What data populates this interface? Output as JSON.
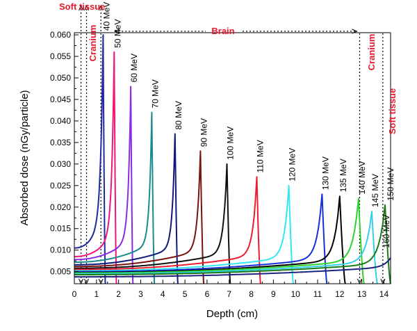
{
  "chart_data": {
    "type": "line",
    "xlabel": "Depth (cm)",
    "ylabel": "Absorbed dose (nGy/particle)",
    "xlim": [
      0,
      14.3
    ],
    "ylim": [
      0.0022,
      0.0605
    ],
    "xticks": [
      "0",
      "1",
      "2",
      "3",
      "4",
      "5",
      "6",
      "7",
      "8",
      "9",
      "10",
      "11",
      "12",
      "13",
      "14"
    ],
    "yticks": [
      "0.005",
      "0.010",
      "0.015",
      "0.020",
      "0.025",
      "0.030",
      "0.035",
      "0.040",
      "0.045",
      "0.050",
      "0.055",
      "0.060"
    ],
    "series": [
      {
        "name": "40 MeV",
        "color": "#1f2aa0",
        "peak_depth": 1.3,
        "peak_dose": 0.06,
        "start_dose": 0.0105,
        "range": 1.4
      },
      {
        "name": "50 MeV",
        "color": "#f0147c",
        "peak_depth": 1.8,
        "peak_dose": 0.056,
        "start_dose": 0.0085,
        "range": 1.9
      },
      {
        "name": "60 MeV",
        "color": "#8a2be2",
        "peak_depth": 2.55,
        "peak_dose": 0.048,
        "start_dose": 0.0078,
        "range": 2.65
      },
      {
        "name": "70 MeV",
        "color": "#1a8a8a",
        "peak_depth": 3.5,
        "peak_dose": 0.042,
        "start_dose": 0.0072,
        "range": 3.62
      },
      {
        "name": "80 MeV",
        "color": "#0d1a78",
        "peak_depth": 4.55,
        "peak_dose": 0.037,
        "start_dose": 0.0066,
        "range": 4.68
      },
      {
        "name": "90 MeV",
        "color": "#7a1010",
        "peak_depth": 5.7,
        "peak_dose": 0.033,
        "start_dose": 0.0062,
        "range": 5.85
      },
      {
        "name": "100 MeV",
        "color": "#111111",
        "peak_depth": 6.9,
        "peak_dose": 0.03,
        "start_dose": 0.0058,
        "range": 7.05
      },
      {
        "name": "110 MeV",
        "color": "#ee1c2e",
        "peak_depth": 8.25,
        "peak_dose": 0.027,
        "start_dose": 0.0055,
        "range": 8.42
      },
      {
        "name": "120 MeV",
        "color": "#33e6f0",
        "peak_depth": 9.7,
        "peak_dose": 0.025,
        "start_dose": 0.0052,
        "range": 9.9
      },
      {
        "name": "130 MeV",
        "color": "#1530d8",
        "peak_depth": 11.2,
        "peak_dose": 0.023,
        "start_dose": 0.005,
        "range": 11.42
      },
      {
        "name": "135 MeV",
        "color": "#000000",
        "peak_depth": 12.0,
        "peak_dose": 0.0225,
        "start_dose": 0.0048,
        "range": 12.25
      },
      {
        "name": "140 MeV",
        "color": "#2fd12f",
        "peak_depth": 12.85,
        "peak_dose": 0.022,
        "start_dose": 0.0047,
        "range": 13.1
      },
      {
        "name": "145 MeV",
        "color": "#33d0ea",
        "peak_depth": 13.45,
        "peak_dose": 0.019,
        "start_dose": 0.0045,
        "range": 13.7
      },
      {
        "name": "150 MeV",
        "color": "#1a7a1a",
        "peak_depth": 14.05,
        "peak_dose": 0.0205,
        "start_dose": 0.0043,
        "range": 14.3
      },
      {
        "name": "160 MeV",
        "color": "#1a237e",
        "peak_depth": 14.3,
        "peak_dose": 0.0082,
        "start_dose": 0.0038,
        "range": 14.3
      }
    ],
    "annotations": {
      "soft_tissue_left": "Soft tissue",
      "cranium_left": "Cranium",
      "brain": "Brain",
      "cranium_right": "Cranium",
      "soft_tissue_right": "Soft tissue"
    },
    "boundaries_depth": [
      0.3,
      0.55,
      1.2,
      12.9,
      13.95
    ]
  }
}
